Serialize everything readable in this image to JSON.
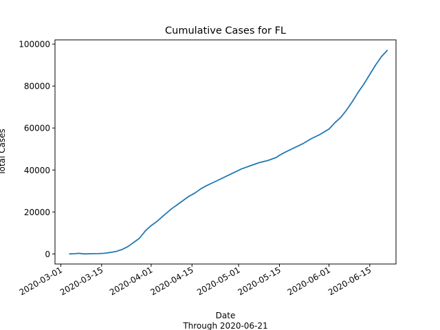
{
  "chart_data": {
    "type": "line",
    "title": "Cumulative Cases for FL",
    "xlabel": "Date",
    "xlabel_sub": "Through 2020-06-21",
    "ylabel": "Total Cases",
    "xlim": [
      "2020-02-28",
      "2020-06-24"
    ],
    "ylim": [
      -4800,
      102000
    ],
    "xticks": [
      "2020-03-01",
      "2020-03-15",
      "2020-04-01",
      "2020-04-15",
      "2020-05-01",
      "2020-05-15",
      "2020-06-01",
      "2020-06-15"
    ],
    "yticks": [
      0,
      20000,
      40000,
      60000,
      80000,
      100000
    ],
    "ytick_labels": [
      "0",
      "20000",
      "40000",
      "60000",
      "80000",
      "100000"
    ],
    "grid": false,
    "legend": "none",
    "series": [
      {
        "color": "#1f77b4",
        "x": [
          "2020-03-04",
          "2020-03-06",
          "2020-03-07",
          "2020-03-09",
          "2020-03-12",
          "2020-03-14",
          "2020-03-16",
          "2020-03-18",
          "2020-03-20",
          "2020-03-22",
          "2020-03-24",
          "2020-03-26",
          "2020-03-28",
          "2020-03-30",
          "2020-04-01",
          "2020-04-03",
          "2020-04-05",
          "2020-04-08",
          "2020-04-10",
          "2020-04-12",
          "2020-04-14",
          "2020-04-16",
          "2020-04-18",
          "2020-04-20",
          "2020-04-23",
          "2020-04-26",
          "2020-04-29",
          "2020-05-02",
          "2020-05-05",
          "2020-05-08",
          "2020-05-11",
          "2020-05-14",
          "2020-05-15",
          "2020-05-17",
          "2020-05-20",
          "2020-05-23",
          "2020-05-26",
          "2020-05-29",
          "2020-06-01",
          "2020-06-03",
          "2020-06-05",
          "2020-06-07",
          "2020-06-09",
          "2020-06-11",
          "2020-06-13",
          "2020-06-15",
          "2020-06-17",
          "2020-06-19",
          "2020-06-21"
        ],
        "y": [
          0,
          100,
          300,
          0,
          100,
          150,
          300,
          700,
          1200,
          2100,
          3500,
          5500,
          7500,
          11000,
          13500,
          15500,
          18000,
          21500,
          23500,
          25500,
          27500,
          29000,
          31000,
          32500,
          34500,
          36500,
          38500,
          40500,
          42000,
          43500,
          44500,
          46000,
          47000,
          48500,
          50500,
          52500,
          55000,
          57000,
          59500,
          62500,
          65000,
          68500,
          72500,
          77000,
          81000,
          85500,
          90000,
          94000,
          97000
        ]
      }
    ]
  }
}
